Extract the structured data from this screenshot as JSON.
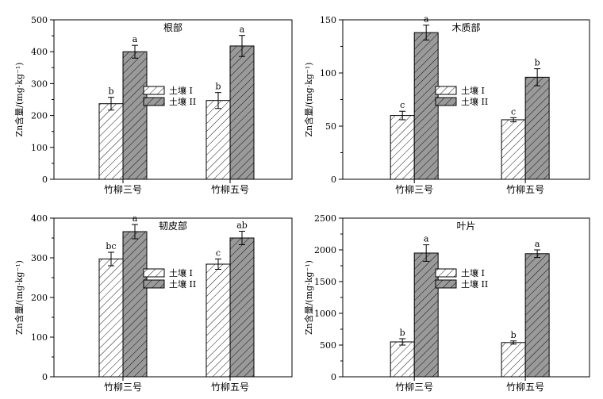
{
  "colors": {
    "soil1": "#ffffff",
    "soil2": "#9a9a9a",
    "axis": "#000000"
  },
  "chart_data": [
    {
      "type": "bar",
      "title": "根部",
      "ylabel": "Zn含量/(mg·kg⁻¹)",
      "categories": [
        "竹柳三号",
        "竹柳五号"
      ],
      "ylim": [
        0,
        500
      ],
      "yticks": [
        0,
        100,
        200,
        300,
        400,
        500
      ],
      "series": [
        {
          "name": "土壤 I",
          "values": [
            237,
            247
          ],
          "errors": [
            20,
            25
          ],
          "labels": [
            "b",
            "b"
          ]
        },
        {
          "name": "土壤 II",
          "values": [
            400,
            418
          ],
          "errors": [
            20,
            33
          ],
          "labels": [
            "a",
            "a"
          ]
        }
      ]
    },
    {
      "type": "bar",
      "title": "木质部",
      "ylabel": "Zn含量/(mg·kg⁻¹)",
      "categories": [
        "竹柳三号",
        "竹柳五号"
      ],
      "ylim": [
        0,
        150
      ],
      "yticks": [
        0,
        50,
        100,
        150
      ],
      "series": [
        {
          "name": "土壤 I",
          "values": [
            60,
            56
          ],
          "errors": [
            4,
            2
          ],
          "labels": [
            "c",
            "c"
          ]
        },
        {
          "name": "土壤 II",
          "values": [
            138,
            96
          ],
          "errors": [
            7,
            8
          ],
          "labels": [
            "a",
            "b"
          ]
        }
      ]
    },
    {
      "type": "bar",
      "title": "韧皮部",
      "ylabel": "Zn含量/(mg·kg⁻¹)",
      "categories": [
        "竹柳三号",
        "竹柳五号"
      ],
      "ylim": [
        0,
        400
      ],
      "yticks": [
        0,
        100,
        200,
        300,
        400
      ],
      "series": [
        {
          "name": "土壤 I",
          "values": [
            297,
            284
          ],
          "errors": [
            17,
            13
          ],
          "labels": [
            "bc",
            "c"
          ]
        },
        {
          "name": "土壤 II",
          "values": [
            366,
            350
          ],
          "errors": [
            18,
            17
          ],
          "labels": [
            "a",
            "ab"
          ]
        }
      ]
    },
    {
      "type": "bar",
      "title": "叶片",
      "ylabel": "Zn含量/(mg·kg⁻¹)",
      "categories": [
        "竹柳三号",
        "竹柳五号"
      ],
      "ylim": [
        0,
        2500
      ],
      "yticks": [
        0,
        500,
        1000,
        1500,
        2000,
        2500
      ],
      "series": [
        {
          "name": "土壤 I",
          "values": [
            550,
            540
          ],
          "errors": [
            50,
            25
          ],
          "labels": [
            "b",
            "b"
          ]
        },
        {
          "name": "土壤 II",
          "values": [
            1950,
            1940
          ],
          "errors": [
            130,
            60
          ],
          "labels": [
            "a",
            "a"
          ]
        }
      ]
    }
  ]
}
